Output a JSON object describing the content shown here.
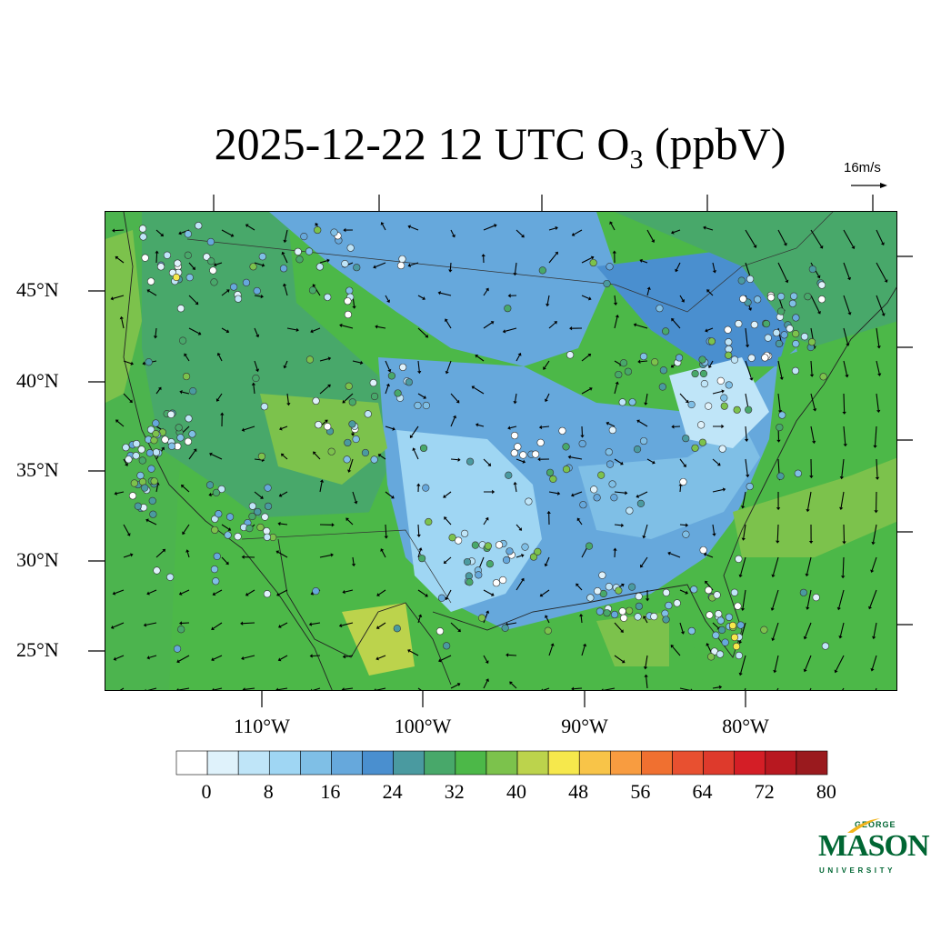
{
  "title": {
    "main": "2025-12-22 12 UTC O",
    "subscript": "3",
    "suffix": " (ppbV)"
  },
  "vector_key": {
    "label": "16m/s",
    "speed_ms": 16
  },
  "axes": {
    "lat_labels": [
      "45°N",
      "40°N",
      "35°N",
      "30°N",
      "25°N"
    ],
    "lat_values": [
      45,
      40,
      35,
      30,
      25
    ],
    "lon_labels": [
      "110°W",
      "100°W",
      "90°W",
      "80°W"
    ],
    "lon_values": [
      -110,
      -100,
      -90,
      -80
    ]
  },
  "colorbar": {
    "labels": [
      "0",
      "8",
      "16",
      "24",
      "32",
      "40",
      "48",
      "56",
      "64",
      "72",
      "80"
    ],
    "levels": [
      0,
      4,
      8,
      12,
      16,
      20,
      24,
      28,
      32,
      36,
      40,
      44,
      48,
      52,
      56,
      60,
      64,
      68,
      72,
      76,
      80
    ],
    "colors": [
      "#ffffff",
      "#dff2fb",
      "#bfe5f8",
      "#9fd6f3",
      "#7fbfe6",
      "#66a8dc",
      "#4a8fcf",
      "#4a9aa0",
      "#48a86a",
      "#4cb848",
      "#7cc24c",
      "#bcd34c",
      "#f6e84c",
      "#f8c448",
      "#f89c40",
      "#f07030",
      "#e85030",
      "#de3a2c",
      "#d41e26",
      "#b81820",
      "#9a1a1e"
    ]
  },
  "logo": {
    "line1": "GEORGE",
    "line2": "MASON",
    "line3": "UNIVERSITY"
  },
  "colors": {
    "land_green": "#4cb848",
    "ocean_green": "#48b44a",
    "low_blue": "#66a8dc",
    "border": "#000000"
  }
}
